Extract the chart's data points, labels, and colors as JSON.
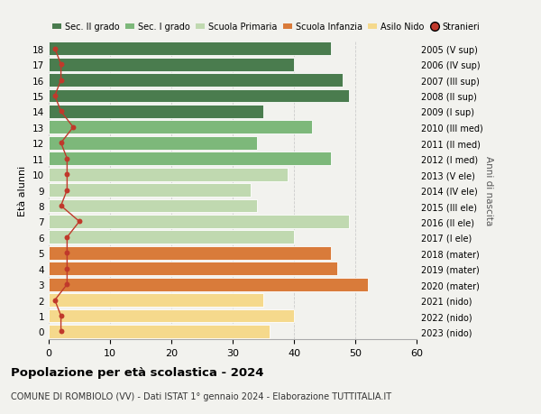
{
  "ages": [
    18,
    17,
    16,
    15,
    14,
    13,
    12,
    11,
    10,
    9,
    8,
    7,
    6,
    5,
    4,
    3,
    2,
    1,
    0
  ],
  "values": [
    46,
    40,
    48,
    49,
    35,
    43,
    34,
    46,
    39,
    33,
    34,
    49,
    40,
    46,
    47,
    52,
    35,
    40,
    36
  ],
  "right_labels": [
    "2005 (V sup)",
    "2006 (IV sup)",
    "2007 (III sup)",
    "2008 (II sup)",
    "2009 (I sup)",
    "2010 (III med)",
    "2011 (II med)",
    "2012 (I med)",
    "2013 (V ele)",
    "2014 (IV ele)",
    "2015 (III ele)",
    "2016 (II ele)",
    "2017 (I ele)",
    "2018 (mater)",
    "2019 (mater)",
    "2020 (mater)",
    "2021 (nido)",
    "2022 (nido)",
    "2023 (nido)"
  ],
  "stranieri": [
    1,
    2,
    2,
    1,
    2,
    4,
    2,
    3,
    3,
    3,
    2,
    5,
    3,
    3,
    3,
    3,
    1,
    2,
    2
  ],
  "bar_colors": [
    "#4a7c4e",
    "#4a7c4e",
    "#4a7c4e",
    "#4a7c4e",
    "#4a7c4e",
    "#7db87a",
    "#7db87a",
    "#7db87a",
    "#c0d9b0",
    "#c0d9b0",
    "#c0d9b0",
    "#c0d9b0",
    "#c0d9b0",
    "#d97b3a",
    "#d97b3a",
    "#d97b3a",
    "#f5d98c",
    "#f5d98c",
    "#f5d98c"
  ],
  "legend_labels": [
    "Sec. II grado",
    "Sec. I grado",
    "Scuola Primaria",
    "Scuola Infanzia",
    "Asilo Nido",
    "Stranieri"
  ],
  "legend_colors": [
    "#4a7c4e",
    "#7db87a",
    "#c0d9b0",
    "#d97b3a",
    "#f5d98c",
    "#c0392b"
  ],
  "stranieri_color": "#c0392b",
  "title_bold": "Popolazione per età scolastica - 2024",
  "subtitle": "COMUNE DI ROMBIOLO (VV) - Dati ISTAT 1° gennaio 2024 - Elaborazione TUTTITALIA.IT",
  "ylabel_left": "Età alunni",
  "ylabel_right": "Anni di nascita",
  "xlim": [
    0,
    60
  ],
  "xticks": [
    0,
    10,
    20,
    30,
    40,
    50,
    60
  ],
  "bg_color": "#f2f2ee"
}
